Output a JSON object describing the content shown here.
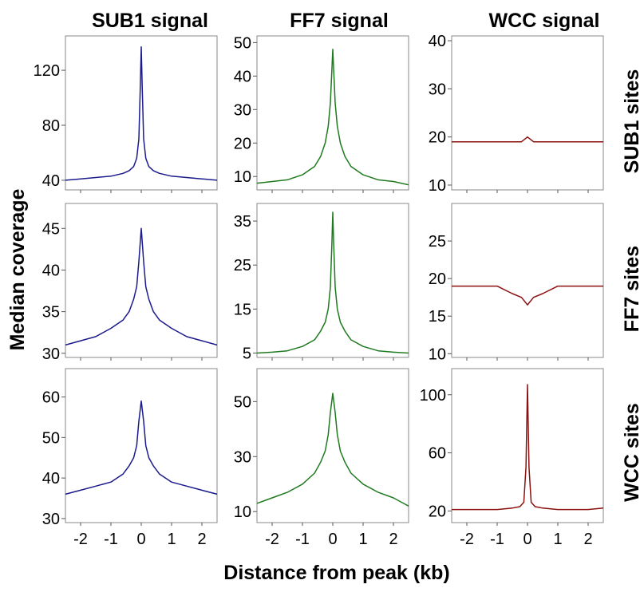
{
  "figure": {
    "xlabel": "Distance from peak (kb)",
    "ylabel": "Median coverage",
    "column_titles": [
      "SUB1 signal",
      "FF7 signal",
      "WCC signal"
    ],
    "row_titles": [
      "SUB1 sites",
      "FF7 sites",
      "WCC sites"
    ]
  },
  "chart_data": [
    {
      "type": "line",
      "row": "SUB1 sites",
      "column": "SUB1 signal",
      "color": "#1a1a8c",
      "xlim": [
        -2.5,
        2.5
      ],
      "ylim": [
        33,
        145
      ],
      "yticks": [
        40,
        80,
        120
      ],
      "xticks": [],
      "series": [
        {
          "x": [
            -2.5,
            -2.0,
            -1.5,
            -1.0,
            -0.6,
            -0.4,
            -0.25,
            -0.15,
            -0.08,
            -0.03,
            0.0,
            0.03,
            0.08,
            0.15,
            0.25,
            0.4,
            0.6,
            1.0,
            1.5,
            2.0,
            2.5
          ],
          "y": [
            40,
            41,
            42,
            43,
            45,
            47,
            50,
            56,
            70,
            110,
            137,
            110,
            70,
            56,
            50,
            47,
            45,
            43,
            42,
            41,
            40
          ]
        }
      ]
    },
    {
      "type": "line",
      "row": "SUB1 sites",
      "column": "FF7 signal",
      "color": "#1f7a1f",
      "xlim": [
        -2.5,
        2.5
      ],
      "ylim": [
        6,
        52
      ],
      "yticks": [
        10,
        20,
        30,
        40,
        50
      ],
      "xticks": [],
      "series": [
        {
          "x": [
            -2.5,
            -2.0,
            -1.5,
            -1.0,
            -0.6,
            -0.4,
            -0.25,
            -0.15,
            -0.08,
            -0.03,
            0.0,
            0.03,
            0.08,
            0.15,
            0.25,
            0.4,
            0.6,
            1.0,
            1.5,
            2.0,
            2.5
          ],
          "y": [
            8,
            8.5,
            9,
            10.5,
            13,
            16,
            20,
            25,
            32,
            42,
            48,
            42,
            32,
            25,
            20,
            16,
            13,
            10.5,
            9,
            8.5,
            7.5
          ]
        }
      ]
    },
    {
      "type": "line",
      "row": "SUB1 sites",
      "column": "WCC signal",
      "color": "#8b1010",
      "xlim": [
        -2.5,
        2.5
      ],
      "ylim": [
        9,
        41
      ],
      "yticks": [
        10,
        20,
        30,
        40
      ],
      "xticks": [],
      "series": [
        {
          "x": [
            -2.5,
            -2.0,
            -1.5,
            -1.0,
            -0.5,
            -0.2,
            0.0,
            0.2,
            0.5,
            1.0,
            1.5,
            2.0,
            2.5
          ],
          "y": [
            19,
            19,
            19,
            19,
            19,
            19,
            20,
            19,
            19,
            19,
            19,
            19,
            19
          ]
        }
      ]
    },
    {
      "type": "line",
      "row": "FF7 sites",
      "column": "SUB1 signal",
      "color": "#1a1a8c",
      "xlim": [
        -2.5,
        2.5
      ],
      "ylim": [
        29.5,
        48
      ],
      "yticks": [
        30,
        35,
        40,
        45
      ],
      "xticks": [],
      "series": [
        {
          "x": [
            -2.5,
            -2.0,
            -1.5,
            -1.0,
            -0.6,
            -0.4,
            -0.25,
            -0.15,
            -0.08,
            0.0,
            0.08,
            0.15,
            0.25,
            0.4,
            0.6,
            1.0,
            1.5,
            2.0,
            2.5
          ],
          "y": [
            31,
            31.5,
            32,
            33,
            34,
            35,
            36.5,
            38,
            41,
            45,
            41,
            38,
            36.5,
            35,
            34,
            33,
            32,
            31.5,
            31
          ]
        }
      ]
    },
    {
      "type": "line",
      "row": "FF7 sites",
      "column": "FF7 signal",
      "color": "#1f7a1f",
      "xlim": [
        -2.5,
        2.5
      ],
      "ylim": [
        4,
        39
      ],
      "yticks": [
        5,
        15,
        25,
        35
      ],
      "xticks": [],
      "series": [
        {
          "x": [
            -2.5,
            -2.0,
            -1.5,
            -1.0,
            -0.6,
            -0.4,
            -0.25,
            -0.15,
            -0.08,
            -0.03,
            0.0,
            0.03,
            0.08,
            0.15,
            0.25,
            0.4,
            0.6,
            1.0,
            1.5,
            2.0,
            2.5
          ],
          "y": [
            5,
            5.2,
            5.5,
            6.5,
            8,
            10,
            12,
            15,
            20,
            30,
            37,
            30,
            20,
            15,
            12,
            10,
            8,
            6.5,
            5.5,
            5.2,
            5
          ]
        }
      ]
    },
    {
      "type": "line",
      "row": "FF7 sites",
      "column": "WCC signal",
      "color": "#8b1010",
      "xlim": [
        -2.5,
        2.5
      ],
      "ylim": [
        9.5,
        30
      ],
      "yticks": [
        10,
        15,
        20,
        25
      ],
      "xticks": [],
      "series": [
        {
          "x": [
            -2.5,
            -2.0,
            -1.5,
            -1.0,
            -0.5,
            -0.2,
            0.0,
            0.2,
            0.5,
            1.0,
            1.5,
            2.0,
            2.5
          ],
          "y": [
            19,
            19,
            19,
            19,
            18,
            17.5,
            16.5,
            17.5,
            18,
            19,
            19,
            19,
            19
          ]
        }
      ]
    },
    {
      "type": "line",
      "row": "WCC sites",
      "column": "SUB1 signal",
      "color": "#1a1a8c",
      "xlim": [
        -2.5,
        2.5
      ],
      "ylim": [
        29,
        67
      ],
      "yticks": [
        30,
        40,
        50,
        60
      ],
      "xticks": [
        -2,
        -1,
        0,
        1,
        2
      ],
      "series": [
        {
          "x": [
            -2.5,
            -2.0,
            -1.5,
            -1.0,
            -0.6,
            -0.4,
            -0.25,
            -0.15,
            -0.08,
            0.0,
            0.08,
            0.15,
            0.25,
            0.4,
            0.6,
            1.0,
            1.5,
            2.0,
            2.5
          ],
          "y": [
            36,
            37,
            38,
            39,
            41,
            43,
            45,
            48,
            54,
            59,
            54,
            48,
            45,
            43,
            41,
            39,
            38,
            37,
            36
          ]
        }
      ]
    },
    {
      "type": "line",
      "row": "WCC sites",
      "column": "FF7 signal",
      "color": "#1f7a1f",
      "xlim": [
        -2.5,
        2.5
      ],
      "ylim": [
        6,
        62
      ],
      "yticks": [
        10,
        30,
        50
      ],
      "xticks": [
        -2,
        -1,
        0,
        1,
        2
      ],
      "series": [
        {
          "x": [
            -2.5,
            -2.0,
            -1.5,
            -1.0,
            -0.6,
            -0.4,
            -0.25,
            -0.15,
            -0.08,
            0.0,
            0.08,
            0.15,
            0.25,
            0.4,
            0.6,
            1.0,
            1.5,
            2.0,
            2.5
          ],
          "y": [
            13,
            15,
            17,
            20,
            24,
            28,
            32,
            38,
            46,
            53,
            46,
            38,
            32,
            28,
            24,
            20,
            17,
            15,
            12
          ]
        }
      ]
    },
    {
      "type": "line",
      "row": "WCC sites",
      "column": "WCC signal",
      "color": "#8b1010",
      "xlim": [
        -2.5,
        2.5
      ],
      "ylim": [
        12,
        118
      ],
      "yticks": [
        20,
        60,
        100
      ],
      "xticks": [
        -2,
        -1,
        0,
        1,
        2
      ],
      "series": [
        {
          "x": [
            -2.5,
            -2.0,
            -1.5,
            -1.0,
            -0.5,
            -0.25,
            -0.12,
            -0.05,
            0.0,
            0.05,
            0.12,
            0.25,
            0.5,
            1.0,
            1.5,
            2.0,
            2.5
          ],
          "y": [
            21,
            21,
            21,
            21,
            22,
            23,
            26,
            50,
            107,
            50,
            26,
            23,
            22,
            21,
            21,
            21,
            22
          ]
        }
      ]
    }
  ]
}
